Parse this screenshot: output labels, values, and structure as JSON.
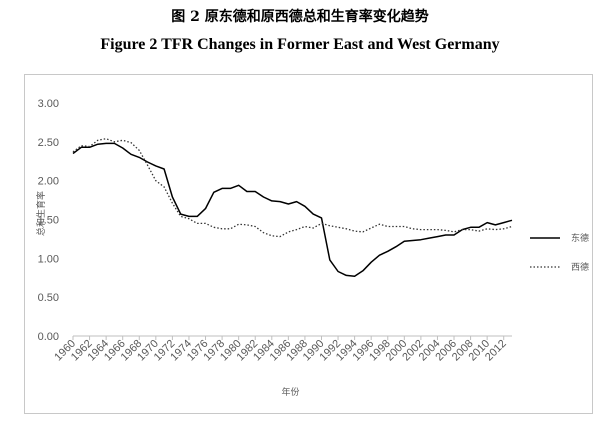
{
  "titles": {
    "cn": "图 2  原东德和原西德总和生育率变化趋势",
    "en": "Figure 2 TFR Changes in Former East and West Germany"
  },
  "chart_data": {
    "type": "line",
    "xlabel": "年份",
    "ylabel": "总和生育率",
    "ylim": [
      0,
      3
    ],
    "xlim": [
      1960,
      2013
    ],
    "yticks": [
      "0.00",
      "0.50",
      "1.00",
      "1.50",
      "2.00",
      "2.50",
      "3.00"
    ],
    "xticks": [
      1960,
      1962,
      1964,
      1966,
      1968,
      1970,
      1972,
      1974,
      1976,
      1978,
      1980,
      1982,
      1984,
      1986,
      1988,
      1990,
      1992,
      1994,
      1996,
      1998,
      2000,
      2002,
      2004,
      2006,
      2008,
      2010,
      2012
    ],
    "grid": false,
    "legend_position": "right",
    "x": [
      1960,
      1961,
      1962,
      1963,
      1964,
      1965,
      1966,
      1967,
      1968,
      1969,
      1970,
      1971,
      1972,
      1973,
      1974,
      1975,
      1976,
      1977,
      1978,
      1979,
      1980,
      1981,
      1982,
      1983,
      1984,
      1985,
      1986,
      1987,
      1988,
      1989,
      1990,
      1991,
      1992,
      1993,
      1994,
      1995,
      1996,
      1997,
      1998,
      1999,
      2000,
      2001,
      2002,
      2003,
      2004,
      2005,
      2006,
      2007,
      2008,
      2009,
      2010,
      2011,
      2012,
      2013
    ],
    "series": [
      {
        "name": "东德",
        "style": "solid",
        "color": "#000000",
        "values": [
          2.35,
          2.43,
          2.43,
          2.47,
          2.48,
          2.48,
          2.42,
          2.34,
          2.3,
          2.24,
          2.19,
          2.15,
          1.79,
          1.57,
          1.54,
          1.54,
          1.64,
          1.85,
          1.9,
          1.9,
          1.94,
          1.86,
          1.86,
          1.79,
          1.74,
          1.73,
          1.7,
          1.73,
          1.67,
          1.57,
          1.52,
          0.98,
          0.83,
          0.78,
          0.77,
          0.84,
          0.95,
          1.04,
          1.09,
          1.15,
          1.22,
          1.23,
          1.24,
          1.26,
          1.28,
          1.3,
          1.3,
          1.37,
          1.4,
          1.4,
          1.46,
          1.43,
          1.46,
          1.49
        ]
      },
      {
        "name": "西德",
        "style": "dotted",
        "color": "#333333",
        "values": [
          2.37,
          2.45,
          2.44,
          2.52,
          2.54,
          2.5,
          2.52,
          2.49,
          2.39,
          2.2,
          2.0,
          1.92,
          1.71,
          1.54,
          1.51,
          1.45,
          1.45,
          1.4,
          1.38,
          1.38,
          1.44,
          1.43,
          1.41,
          1.33,
          1.29,
          1.28,
          1.34,
          1.37,
          1.41,
          1.39,
          1.45,
          1.42,
          1.4,
          1.38,
          1.35,
          1.34,
          1.39,
          1.44,
          1.41,
          1.41,
          1.41,
          1.38,
          1.37,
          1.37,
          1.37,
          1.36,
          1.34,
          1.37,
          1.37,
          1.35,
          1.38,
          1.37,
          1.38,
          1.41
        ]
      }
    ]
  }
}
